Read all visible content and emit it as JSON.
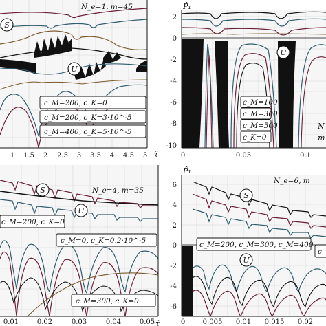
{
  "colors": {
    "teal": "#2f5d6e",
    "maroon": "#6a1f35",
    "brown": "#7a5a2a",
    "black": "#111111"
  },
  "chart_data": [
    {
      "type": "line",
      "panel": "top-left",
      "title": "N_e=1, m=45",
      "xlabel": "τ̂",
      "x_ticks": [
        "1",
        "1.5",
        "2",
        "2.5",
        "3",
        "3.5",
        "4",
        "4.5",
        "5"
      ],
      "xlim": [
        0.8,
        5.1
      ],
      "region_labels": [
        "S",
        "U"
      ],
      "legend": [
        "c_M=200, c_K=0",
        "c_M=200, c_K=3·10^-5",
        "c_M=400, c_K=5·10^-5"
      ]
    },
    {
      "type": "line",
      "panel": "top-right",
      "ylabel": "P̂₁",
      "x_ticks": [
        "0",
        "0.05",
        "0.1"
      ],
      "y_ticks": [
        "2",
        "0",
        "-2",
        "-4",
        "-6",
        "-8",
        "-10"
      ],
      "xlim": [
        0,
        0.135
      ],
      "ylim": [
        -10,
        2.8
      ],
      "region_labels": [
        "U"
      ],
      "legend": [
        "c_M=100",
        "c_M=300",
        "c_M=500",
        "c_K=0"
      ],
      "side_text": [
        "N",
        "m"
      ]
    },
    {
      "type": "line",
      "panel": "bottom-left",
      "title": "N_e=4, m=35",
      "xlabel": "τ̂",
      "x_ticks": [
        "0.01",
        "0.02",
        "0.03",
        "0.04",
        "0.05"
      ],
      "xlim": [
        0.0035,
        0.0535
      ],
      "region_labels": [
        "S",
        "U"
      ],
      "legend": [
        "c_M=200, c_K=0",
        "c_M=0, c_K=0.2·10^-5",
        "c_M=300, c_K=0"
      ]
    },
    {
      "type": "line",
      "panel": "bottom-right",
      "title": "N_e=6, m",
      "ylabel": "P̂₁",
      "x_ticks": [
        "0",
        "0.005",
        "0.01",
        "0.015",
        "0.02"
      ],
      "y_ticks": [
        "6",
        "4",
        "2",
        "0",
        "-2",
        "-4",
        "-6"
      ],
      "xlim": [
        0,
        0.0235
      ],
      "ylim": [
        -7,
        7.2
      ],
      "region_labels": [
        "S",
        "U"
      ],
      "legend": [
        "c_M=200, c_M=300, c_M=400",
        "c"
      ]
    }
  ]
}
